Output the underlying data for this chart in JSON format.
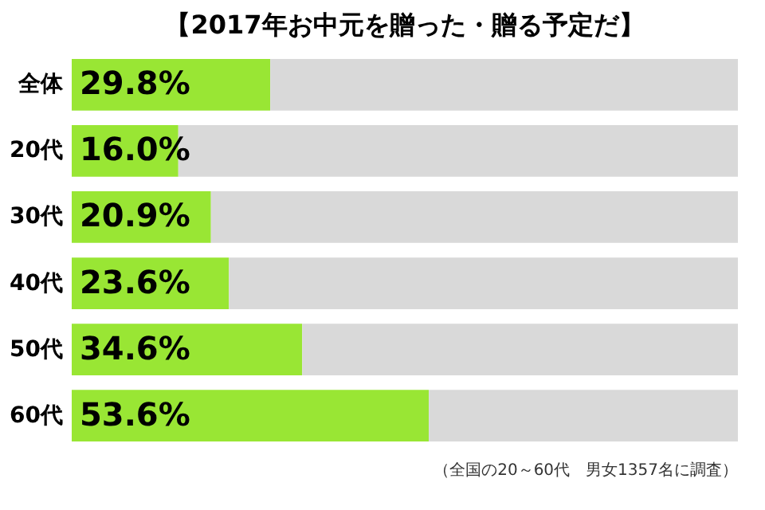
{
  "chart_data": {
    "type": "bar",
    "orientation": "horizontal",
    "stacked": true,
    "title": "【2017年お中元を贈った・贈る予定だ】",
    "categories": [
      "全体",
      "20代",
      "30代",
      "40代",
      "50代",
      "60代"
    ],
    "series": [
      {
        "color": "#99e634",
        "values": [
          29.8,
          16.0,
          20.9,
          23.6,
          34.6,
          53.6
        ],
        "value_labels": [
          "29.8%",
          "16.0%",
          "20.9%",
          "23.6%",
          "34.6%",
          "53.6%"
        ]
      },
      {
        "color": "#d9d9d9",
        "values": [
          70.2,
          84.0,
          79.1,
          76.4,
          65.4,
          46.4
        ]
      }
    ],
    "xlim": [
      0,
      100
    ],
    "tick_labels": "y",
    "grid": false,
    "annotations": [
      "（全国の20～60代　男女1357名に調査）"
    ]
  }
}
